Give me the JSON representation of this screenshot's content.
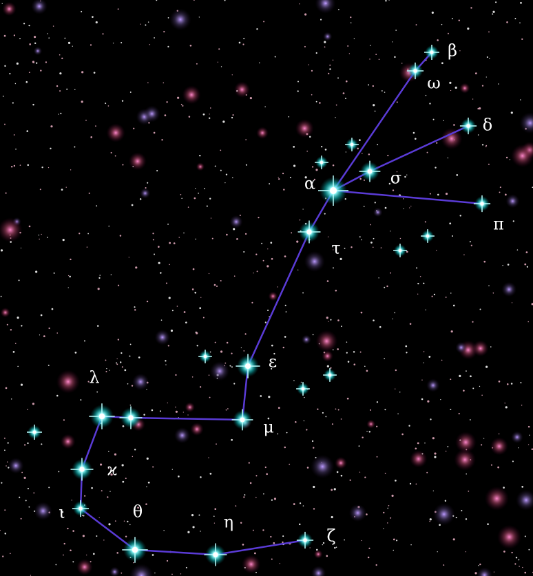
{
  "stars": [
    {
      "label": "β"
    },
    {
      "label": "ω"
    },
    {
      "label": "δ"
    },
    {
      "label": "σ"
    },
    {
      "label": "α"
    },
    {
      "label": "π"
    },
    {
      "label": "τ"
    },
    {
      "label": "ε"
    },
    {
      "label": "μ"
    },
    {
      "label": "λ"
    },
    {
      "label": "ϰ"
    },
    {
      "label": "ι"
    },
    {
      "label": "θ"
    },
    {
      "label": "η"
    },
    {
      "label": "ζ"
    }
  ]
}
